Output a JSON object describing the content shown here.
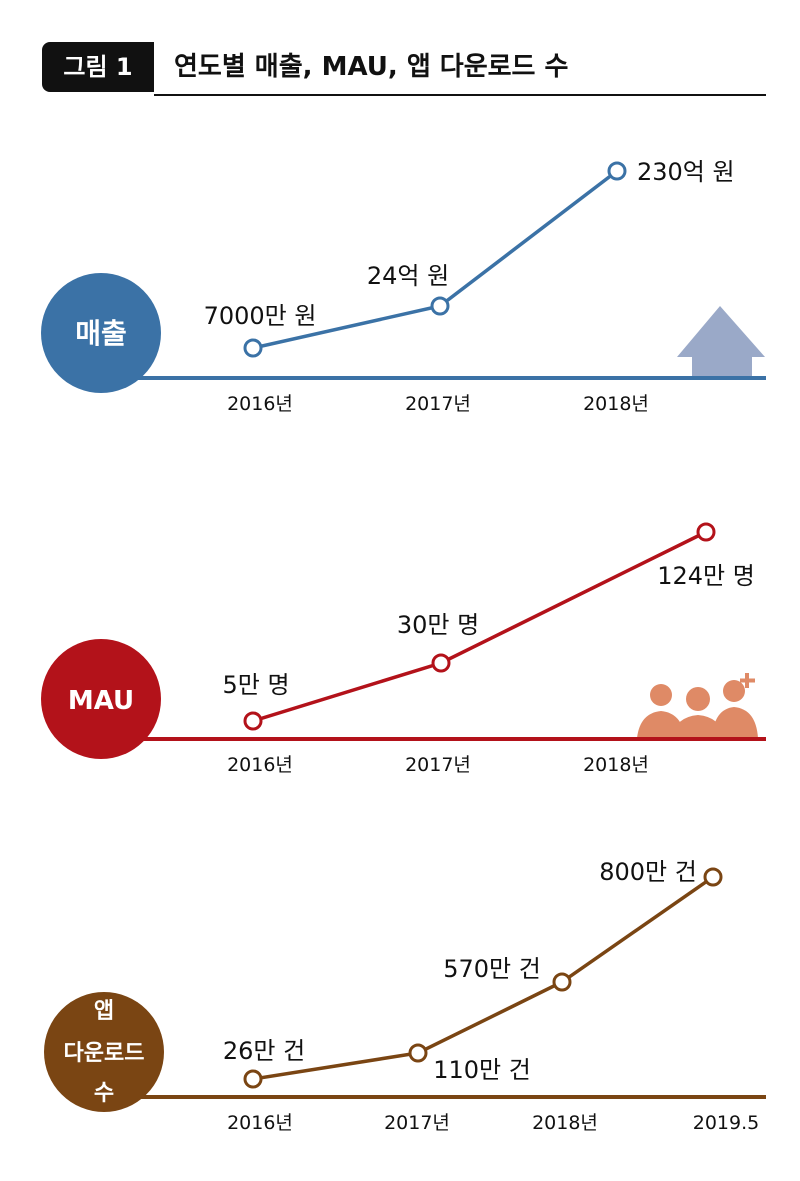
{
  "figure": {
    "tag": "그림 1",
    "title": "연도별 매출, MAU, 앱 다운로드 수"
  },
  "chart_data": [
    {
      "type": "line",
      "title": "매출",
      "color": "#3b72a6",
      "icon": "up-arrow-icon",
      "icon_color": "#9aa9c8",
      "categories": [
        "2016년",
        "2017년",
        "2018년"
      ],
      "values": [
        7000,
        240000,
        2300000
      ],
      "unit": "만 원",
      "labels": [
        "7000만 원",
        "24억 원",
        "230억 원"
      ]
    },
    {
      "type": "line",
      "title": "MAU",
      "color": "#b3121a",
      "icon": "users-plus-icon",
      "icon_color": "#df8a66",
      "categories": [
        "2016년",
        "2017년",
        "2018년"
      ],
      "values": [
        5,
        30,
        124
      ],
      "unit": "만 명",
      "labels": [
        "5만 명",
        "30만 명",
        "124만 명"
      ]
    },
    {
      "type": "line",
      "title_lines": [
        "앱",
        "다운로드",
        "수"
      ],
      "color": "#7a4513",
      "categories": [
        "2016년",
        "2017년",
        "2018년",
        "2019.5"
      ],
      "values": [
        26,
        110,
        570,
        800
      ],
      "unit": "만 건",
      "labels": [
        "26만 건",
        "110만 건",
        "570만 건",
        "800만 건"
      ]
    }
  ]
}
